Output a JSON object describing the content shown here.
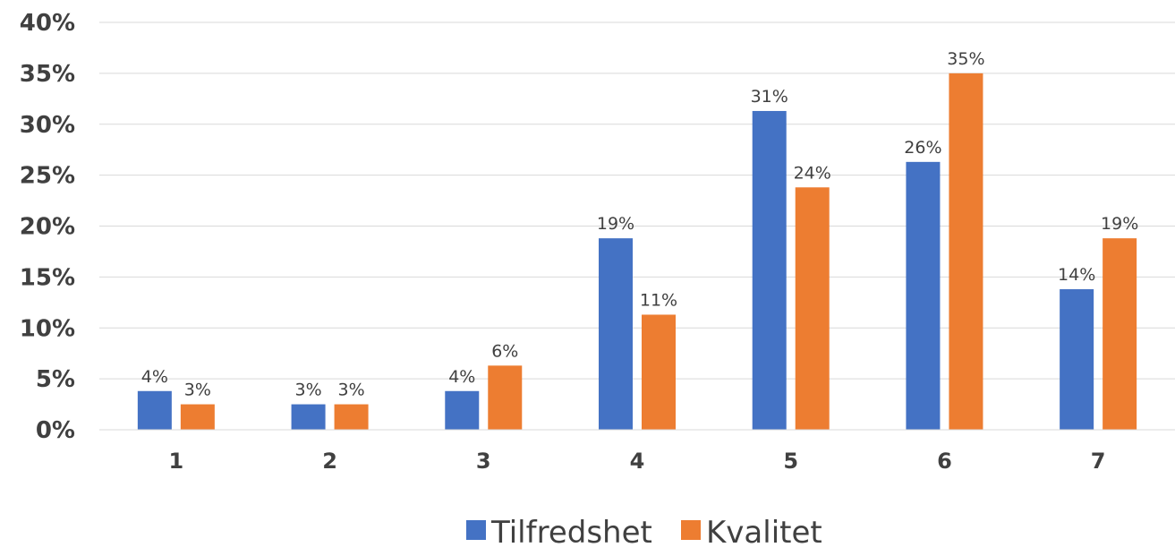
{
  "chart_data": {
    "type": "bar",
    "categories": [
      "1",
      "2",
      "3",
      "4",
      "5",
      "6",
      "7"
    ],
    "series": [
      {
        "name": "Tilfredshet",
        "color": "#4472C4",
        "values": [
          3.8,
          2.5,
          3.8,
          18.8,
          31.3,
          26.3,
          13.8
        ],
        "labels": [
          "4%",
          "3%",
          "4%",
          "19%",
          "31%",
          "26%",
          "14%"
        ]
      },
      {
        "name": "Kvalitet",
        "color": "#ED7D31",
        "values": [
          2.5,
          2.5,
          6.3,
          11.3,
          23.8,
          35.0,
          18.8
        ],
        "labels": [
          "3%",
          "3%",
          "6%",
          "11%",
          "24%",
          "35%",
          "19%"
        ]
      }
    ],
    "yticks": [
      "0%",
      "5%",
      "10%",
      "15%",
      "20%",
      "25%",
      "30%",
      "35%",
      "40%"
    ],
    "ylim": [
      0,
      40
    ],
    "grid": true,
    "legend_position": "bottom",
    "title": "",
    "xlabel": "",
    "ylabel": ""
  }
}
